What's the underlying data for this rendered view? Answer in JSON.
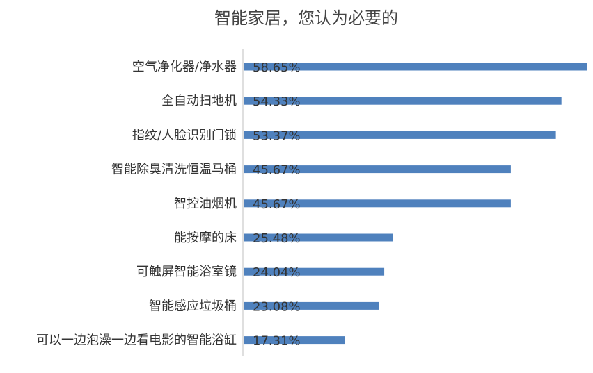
{
  "chart_data": {
    "type": "bar",
    "orientation": "horizontal",
    "title": "智能家居，您认为必要的",
    "categories": [
      "空气净化器/净水器",
      "全自动扫地机",
      "指纹/人脸识别门锁",
      "智能除臭清洗恒温马桶",
      "智控油烟机",
      "能按摩的床",
      "可触屏智能浴室镜",
      "智能感应垃圾桶",
      "可以一边泡澡一边看电影的智能浴缸"
    ],
    "values": [
      58.65,
      54.33,
      53.37,
      45.67,
      45.67,
      25.48,
      24.04,
      23.08,
      17.31
    ],
    "data_labels": [
      "58.65%",
      "54.33%",
      "53.37%",
      "45.67%",
      "45.67%",
      "25.48%",
      "24.04%",
      "23.08%",
      "17.31%"
    ],
    "xlim": [
      0,
      58.65
    ],
    "bar_color": "#4F81BD",
    "axis_color": "#BFBFBF",
    "grid": false,
    "legend": "none"
  }
}
